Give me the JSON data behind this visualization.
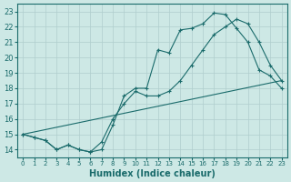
{
  "xlabel": "Humidex (Indice chaleur)",
  "xlim": [
    -0.5,
    23.5
  ],
  "ylim": [
    13.5,
    23.5
  ],
  "xticks": [
    0,
    1,
    2,
    3,
    4,
    5,
    6,
    7,
    8,
    9,
    10,
    11,
    12,
    13,
    14,
    15,
    16,
    17,
    18,
    19,
    20,
    21,
    22,
    23
  ],
  "yticks": [
    14,
    15,
    16,
    17,
    18,
    19,
    20,
    21,
    22,
    23
  ],
  "background_color": "#cde8e5",
  "grid_color": "#b0cece",
  "line_color": "#1a6b6b",
  "line1_x": [
    0,
    1,
    2,
    3,
    4,
    5,
    6,
    7,
    8,
    9,
    10,
    11,
    12,
    13,
    14,
    15,
    16,
    17,
    18,
    19,
    20,
    21,
    22,
    23
  ],
  "line1_y": [
    15.0,
    14.8,
    14.6,
    14.0,
    14.3,
    14.0,
    13.85,
    14.0,
    15.6,
    17.5,
    18.0,
    18.0,
    20.5,
    20.3,
    21.8,
    21.9,
    22.2,
    22.9,
    22.8,
    21.9,
    21.0,
    19.2,
    18.8,
    18.0
  ],
  "line2_x": [
    0,
    1,
    2,
    3,
    4,
    5,
    6,
    7,
    8,
    9,
    10,
    11,
    12,
    13,
    14,
    15,
    16,
    17,
    18,
    19,
    20,
    21,
    22,
    23
  ],
  "line2_y": [
    15.0,
    14.8,
    14.6,
    14.0,
    14.3,
    14.0,
    13.85,
    14.5,
    16.0,
    17.0,
    17.8,
    17.5,
    17.5,
    17.8,
    18.5,
    19.5,
    20.5,
    21.5,
    22.0,
    22.5,
    22.2,
    21.0,
    19.5,
    18.5
  ],
  "line3_x": [
    0,
    23
  ],
  "line3_y": [
    15.0,
    18.5
  ]
}
